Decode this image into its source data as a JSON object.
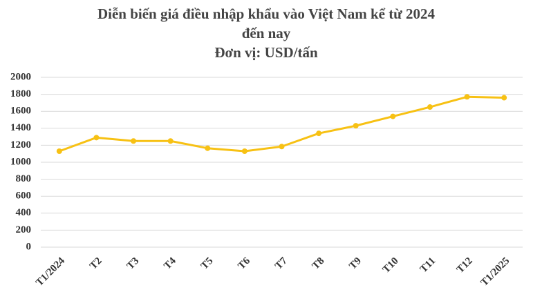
{
  "chart_data": {
    "type": "line",
    "title": [
      "Diễn biến giá điều nhập khẩu vào Việt Nam kể từ 2024",
      "đến nay"
    ],
    "subtitle": "Đơn vị: USD/tấn",
    "categories": [
      "T1/2024",
      "T2",
      "T3",
      "T4",
      "T5",
      "T6",
      "T7",
      "T8",
      "T9",
      "T10",
      "T11",
      "T12",
      "T1/2025"
    ],
    "values": [
      1130,
      1290,
      1250,
      1250,
      1165,
      1130,
      1185,
      1340,
      1430,
      1540,
      1650,
      1770,
      1760
    ],
    "color": "#f7c114",
    "ylim": [
      0,
      2000
    ],
    "yticks": [
      0,
      200,
      400,
      600,
      800,
      1000,
      1200,
      1400,
      1600,
      1800,
      2000
    ],
    "grid": true
  }
}
